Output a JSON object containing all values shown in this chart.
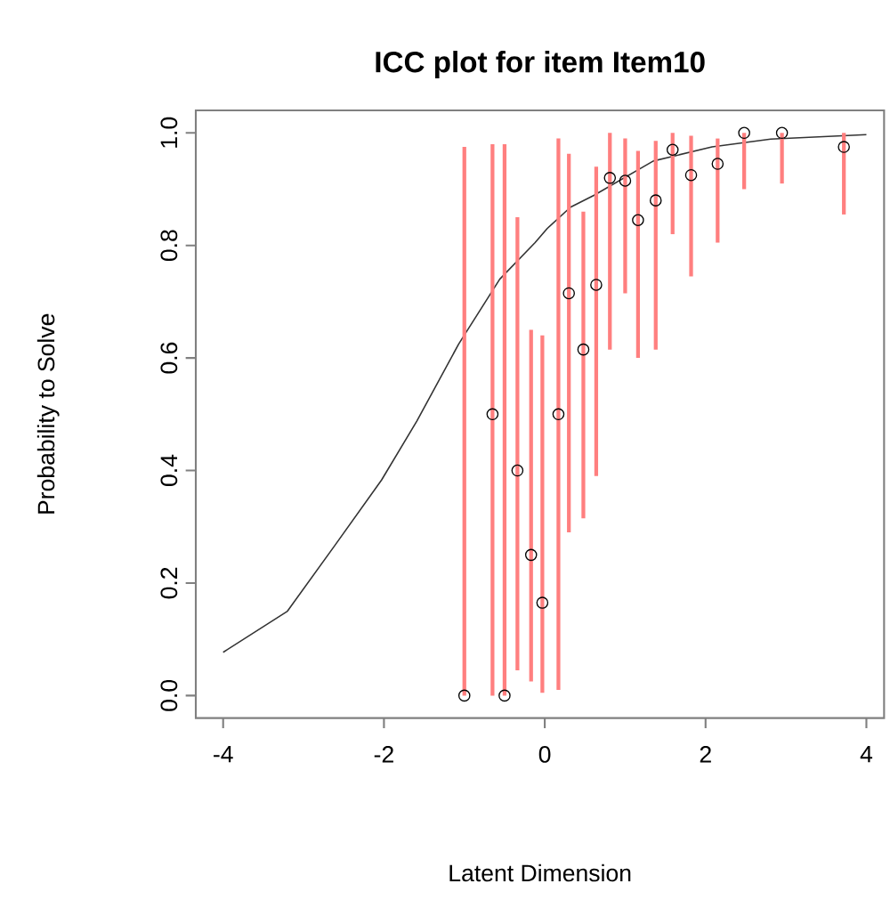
{
  "chart_data": {
    "type": "scatter",
    "title": "ICC plot for item  Item10",
    "xlabel": "Latent Dimension",
    "ylabel": "Probability to Solve",
    "xlim": [
      -4.34,
      4.22
    ],
    "ylim": [
      -0.04,
      1.04
    ],
    "xticks": [
      -4,
      -2,
      0,
      2,
      4
    ],
    "yticks": [
      {
        "value": 0,
        "label": "0.0"
      },
      {
        "value": 0.2,
        "label": "0.2"
      },
      {
        "value": 0.4,
        "label": "0.4"
      },
      {
        "value": 0.6,
        "label": "0.6"
      },
      {
        "value": 0.8,
        "label": "0.8"
      },
      {
        "value": 1,
        "label": "1.0"
      }
    ],
    "grid": false,
    "series": [
      {
        "type": "line",
        "color": "#333333",
        "marker": "none",
        "x": [
          -4.0,
          -3.2,
          -2.61,
          -2.03,
          -1.59,
          -1.07,
          -0.56,
          -0.12,
          0.03,
          0.32,
          0.61,
          1.35,
          2.08,
          2.81,
          4.0
        ],
        "values": [
          0.077,
          0.15,
          0.267,
          0.383,
          0.488,
          0.625,
          0.74,
          0.805,
          0.83,
          0.868,
          0.889,
          0.95,
          0.975,
          0.989,
          0.997
        ]
      },
      {
        "color": "#000000",
        "marker": "circle",
        "x": [
          -1.0,
          -0.65,
          -0.5,
          -0.34,
          -0.17,
          -0.03,
          0.17,
          0.3,
          0.48,
          0.64,
          0.81,
          1.0,
          1.16,
          1.38,
          1.59,
          1.82,
          2.15,
          2.48,
          2.95,
          3.72
        ],
        "values": [
          0,
          0.5,
          0,
          0.4,
          0.25,
          0.165,
          0.5,
          0.715,
          0.615,
          0.73,
          0.92,
          0.915,
          0.845,
          0.88,
          0.97,
          0.925,
          0.945,
          1.0,
          1.0,
          0.975
        ],
        "errors": [
          [
            0,
            0.975
          ],
          [
            0,
            0.98
          ],
          [
            0,
            0.98
          ],
          [
            0.045,
            0.85
          ],
          [
            0.025,
            0.65
          ],
          [
            0.005,
            0.64
          ],
          [
            0.01,
            0.99
          ],
          [
            0.29,
            0.963
          ],
          [
            0.315,
            0.86
          ],
          [
            0.39,
            0.94
          ],
          [
            0.615,
            1.0
          ],
          [
            0.715,
            0.99
          ],
          [
            0.6,
            0.968
          ],
          [
            0.615,
            0.986
          ],
          [
            0.82,
            1.0
          ],
          [
            0.745,
            0.995
          ],
          [
            0.805,
            0.99
          ],
          [
            0.9,
            1.0
          ],
          [
            0.91,
            1.0
          ],
          [
            0.855,
            1.0
          ]
        ]
      }
    ]
  }
}
